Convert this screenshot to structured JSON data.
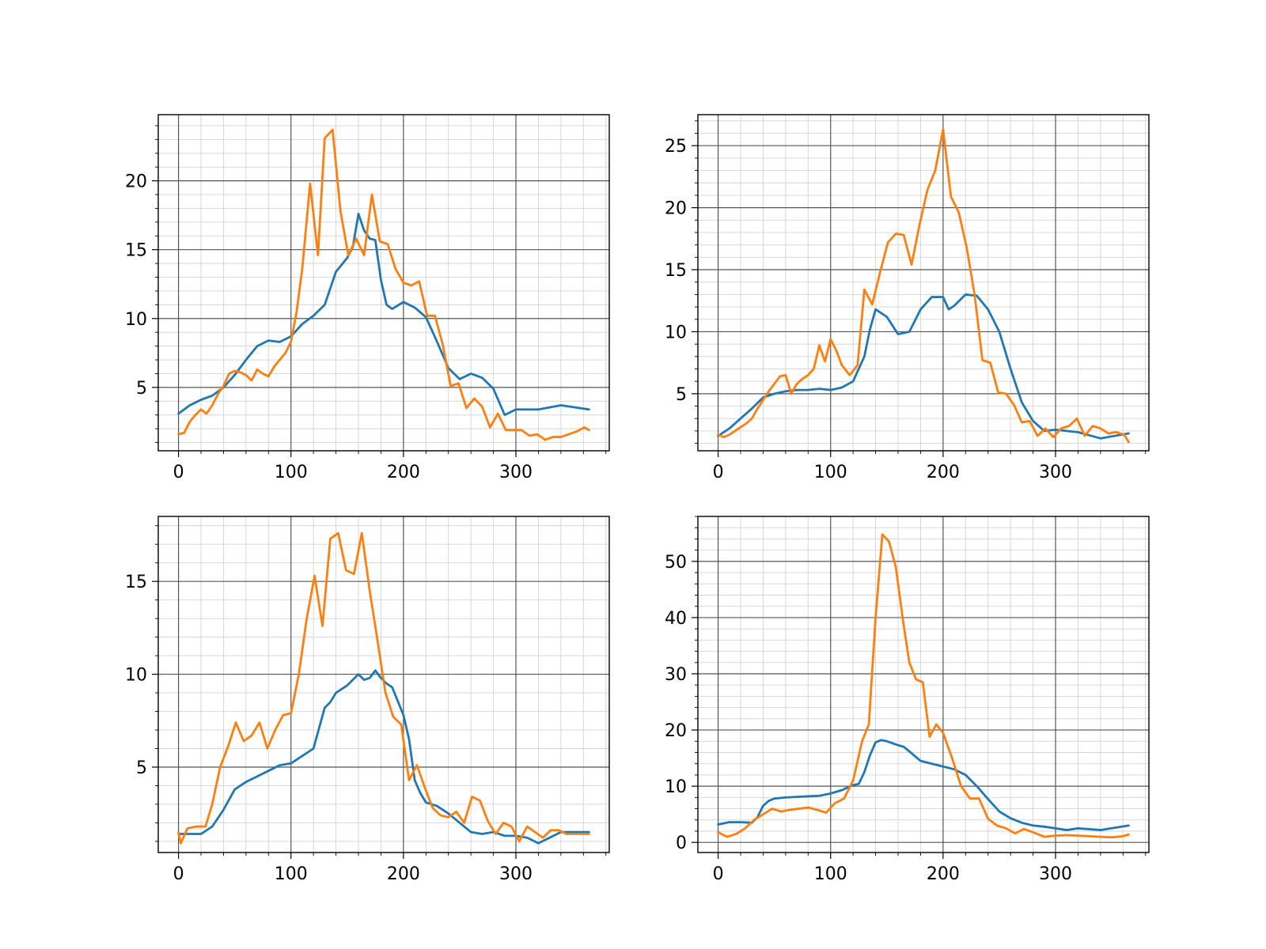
{
  "chart_data": [
    {
      "type": "line",
      "title": "",
      "xlabel": "",
      "ylabel": "",
      "xlim": [
        -18,
        383
      ],
      "ylim": [
        0.4,
        24.8
      ],
      "x_ticks": [
        0,
        100,
        200,
        300
      ],
      "x_ticks_minor": 20,
      "y_ticks": [
        5,
        10,
        15,
        20
      ],
      "y_ticks_minor": 1,
      "grid": true,
      "series": [
        {
          "color": "#1f77b4",
          "x": [
            0,
            10,
            20,
            30,
            40,
            50,
            60,
            70,
            80,
            90,
            100,
            110,
            120,
            130,
            140,
            150,
            155,
            160,
            165,
            170,
            175,
            180,
            185,
            190,
            200,
            210,
            220,
            230,
            240,
            250,
            260,
            270,
            280,
            290,
            300,
            320,
            340,
            365
          ],
          "y": [
            3.1,
            3.7,
            4.1,
            4.4,
            5.0,
            5.9,
            7.0,
            8.0,
            8.4,
            8.3,
            8.7,
            9.6,
            10.2,
            11.0,
            13.4,
            14.4,
            15.2,
            17.6,
            16.4,
            15.8,
            15.7,
            12.8,
            11.0,
            10.7,
            11.2,
            10.8,
            10.1,
            8.3,
            6.4,
            5.6,
            6.0,
            5.7,
            4.9,
            3.0,
            3.4,
            3.4,
            3.7,
            3.4
          ]
        },
        {
          "color": "#ff7f0e",
          "x": [
            0,
            5,
            10,
            15,
            20,
            25,
            30,
            35,
            40,
            45,
            50,
            55,
            60,
            65,
            70,
            75,
            80,
            85,
            90,
            95,
            100,
            105,
            110,
            117,
            124,
            130,
            137,
            144,
            151,
            158,
            165,
            172,
            179,
            186,
            193,
            200,
            207,
            214,
            221,
            228,
            235,
            242,
            249,
            256,
            263,
            270,
            277,
            284,
            291,
            298,
            305,
            312,
            319,
            326,
            333,
            340,
            347,
            354,
            361,
            365
          ],
          "y": [
            1.6,
            1.7,
            2.5,
            3.0,
            3.4,
            3.1,
            3.7,
            4.5,
            5.1,
            6.0,
            6.2,
            6.1,
            5.9,
            5.5,
            6.3,
            6.0,
            5.8,
            6.5,
            7.0,
            7.5,
            8.3,
            10.5,
            13.6,
            19.8,
            14.6,
            23.1,
            23.7,
            17.8,
            14.6,
            15.8,
            14.6,
            19.0,
            15.6,
            15.4,
            13.6,
            12.6,
            12.4,
            12.7,
            10.2,
            10.2,
            8.1,
            5.1,
            5.3,
            3.5,
            4.2,
            3.6,
            2.1,
            3.1,
            1.9,
            1.9,
            1.9,
            1.5,
            1.6,
            1.2,
            1.4,
            1.4,
            1.6,
            1.8,
            2.1,
            1.9
          ]
        }
      ]
    },
    {
      "type": "line",
      "title": "",
      "xlabel": "",
      "ylabel": "",
      "xlim": [
        -18,
        383
      ],
      "ylim": [
        0.4,
        27.5
      ],
      "x_ticks": [
        0,
        100,
        200,
        300
      ],
      "x_ticks_minor": 20,
      "y_ticks": [
        5,
        10,
        15,
        20,
        25
      ],
      "y_ticks_minor": 1,
      "grid": true,
      "series": [
        {
          "color": "#1f77b4",
          "x": [
            0,
            10,
            20,
            30,
            40,
            50,
            60,
            70,
            80,
            90,
            100,
            110,
            120,
            130,
            135,
            140,
            145,
            150,
            160,
            170,
            180,
            190,
            200,
            205,
            210,
            220,
            230,
            240,
            250,
            260,
            270,
            280,
            290,
            300,
            320,
            340,
            365
          ],
          "y": [
            1.6,
            2.2,
            3.0,
            3.8,
            4.7,
            5.0,
            5.2,
            5.3,
            5.3,
            5.4,
            5.3,
            5.5,
            6.0,
            8.0,
            10.2,
            11.8,
            11.5,
            11.2,
            9.8,
            10.0,
            11.8,
            12.8,
            12.8,
            11.8,
            12.1,
            13.0,
            12.9,
            11.8,
            10.0,
            7.0,
            4.3,
            2.8,
            2.0,
            2.1,
            1.9,
            1.4,
            1.8
          ]
        },
        {
          "color": "#ff7f0e",
          "x": [
            0,
            5,
            10,
            15,
            20,
            25,
            30,
            35,
            40,
            45,
            50,
            55,
            60,
            65,
            70,
            75,
            80,
            85,
            90,
            95,
            100,
            105,
            110,
            117,
            124,
            130,
            137,
            144,
            151,
            158,
            165,
            172,
            179,
            186,
            193,
            200,
            207,
            214,
            221,
            228,
            235,
            242,
            249,
            256,
            263,
            270,
            277,
            284,
            291,
            298,
            305,
            312,
            319,
            326,
            333,
            340,
            347,
            354,
            361,
            365
          ],
          "y": [
            1.7,
            1.5,
            1.7,
            2.0,
            2.3,
            2.6,
            3.0,
            3.8,
            4.5,
            5.2,
            5.8,
            6.4,
            6.5,
            5.0,
            5.8,
            6.2,
            6.5,
            7.0,
            8.9,
            7.6,
            9.4,
            8.5,
            7.3,
            6.5,
            7.3,
            13.4,
            12.2,
            14.8,
            17.2,
            17.9,
            17.8,
            15.4,
            18.6,
            21.4,
            23.0,
            26.3,
            20.9,
            19.6,
            16.8,
            13.0,
            7.7,
            7.5,
            5.1,
            5.0,
            4.1,
            2.7,
            2.8,
            1.6,
            2.2,
            1.5,
            2.2,
            2.4,
            3.0,
            1.6,
            2.4,
            2.2,
            1.8,
            1.9,
            1.7,
            1.1
          ]
        }
      ]
    },
    {
      "type": "line",
      "title": "",
      "xlabel": "",
      "ylabel": "",
      "xlim": [
        -18,
        383
      ],
      "ylim": [
        0.4,
        18.5
      ],
      "x_ticks": [
        0,
        100,
        200,
        300
      ],
      "x_ticks_minor": 20,
      "y_ticks": [
        5,
        10,
        15
      ],
      "y_ticks_minor": 1,
      "grid": true,
      "series": [
        {
          "color": "#1f77b4",
          "x": [
            0,
            10,
            20,
            30,
            40,
            50,
            60,
            70,
            80,
            90,
            100,
            110,
            120,
            130,
            135,
            140,
            150,
            160,
            165,
            170,
            175,
            180,
            185,
            190,
            200,
            205,
            210,
            215,
            220,
            230,
            240,
            250,
            260,
            270,
            280,
            290,
            300,
            310,
            320,
            330,
            340,
            350,
            365
          ],
          "y": [
            1.4,
            1.4,
            1.4,
            1.8,
            2.7,
            3.8,
            4.2,
            4.5,
            4.8,
            5.1,
            5.2,
            5.6,
            6.0,
            8.2,
            8.5,
            9.0,
            9.4,
            10.0,
            9.7,
            9.8,
            10.2,
            9.8,
            9.5,
            9.3,
            7.8,
            6.5,
            4.3,
            3.6,
            3.1,
            2.9,
            2.5,
            2.0,
            1.5,
            1.4,
            1.5,
            1.3,
            1.3,
            1.2,
            0.9,
            1.2,
            1.5,
            1.5,
            1.5
          ]
        },
        {
          "color": "#ff7f0e",
          "x": [
            0,
            2,
            8,
            16,
            24,
            30,
            37,
            44,
            51,
            58,
            65,
            72,
            79,
            86,
            93,
            100,
            107,
            114,
            121,
            128,
            135,
            142,
            149,
            156,
            163,
            170,
            177,
            184,
            191,
            198,
            205,
            212,
            219,
            226,
            233,
            240,
            247,
            254,
            261,
            268,
            275,
            282,
            289,
            296,
            303,
            310,
            317,
            324,
            331,
            338,
            345,
            352,
            359,
            365
          ],
          "y": [
            1.5,
            0.9,
            1.7,
            1.8,
            1.8,
            3.0,
            5.0,
            6.1,
            7.4,
            6.4,
            6.7,
            7.4,
            6.0,
            7.0,
            7.8,
            7.9,
            10.0,
            13.0,
            15.3,
            12.6,
            17.3,
            17.6,
            15.6,
            15.4,
            17.6,
            14.5,
            11.8,
            9.0,
            7.7,
            7.3,
            4.3,
            5.1,
            3.9,
            2.8,
            2.4,
            2.3,
            2.6,
            2.0,
            3.4,
            3.2,
            2.1,
            1.4,
            2.0,
            1.8,
            1.0,
            1.8,
            1.5,
            1.2,
            1.6,
            1.6,
            1.4,
            1.4,
            1.4,
            1.4
          ]
        }
      ]
    },
    {
      "type": "line",
      "title": "",
      "xlabel": "",
      "ylabel": "",
      "xlim": [
        -18,
        383
      ],
      "ylim": [
        -1.8,
        58
      ],
      "x_ticks": [
        0,
        100,
        200,
        300
      ],
      "x_ticks_minor": 20,
      "y_ticks": [
        0,
        10,
        20,
        30,
        40,
        50
      ],
      "y_ticks_minor": 2,
      "grid": true,
      "series": [
        {
          "color": "#1f77b4",
          "x": [
            0,
            10,
            20,
            30,
            35,
            40,
            45,
            50,
            60,
            70,
            80,
            90,
            100,
            110,
            120,
            125,
            130,
            135,
            140,
            145,
            150,
            160,
            165,
            170,
            180,
            190,
            200,
            210,
            220,
            230,
            240,
            250,
            260,
            270,
            280,
            290,
            300,
            310,
            320,
            340,
            365
          ],
          "y": [
            3.2,
            3.6,
            3.6,
            3.5,
            4.5,
            6.5,
            7.4,
            7.8,
            8.0,
            8.1,
            8.2,
            8.3,
            8.7,
            9.3,
            10.2,
            10.4,
            12.5,
            15.5,
            17.8,
            18.2,
            18.0,
            17.3,
            17.0,
            16.2,
            14.5,
            14.0,
            13.5,
            13.0,
            12.0,
            10.0,
            7.7,
            5.5,
            4.3,
            3.5,
            3.0,
            2.8,
            2.5,
            2.2,
            2.5,
            2.2,
            3.0
          ]
        },
        {
          "color": "#ff7f0e",
          "x": [
            0,
            8,
            16,
            24,
            32,
            40,
            48,
            56,
            64,
            72,
            80,
            88,
            96,
            104,
            112,
            120,
            128,
            134,
            140,
            146,
            152,
            158,
            164,
            170,
            176,
            182,
            188,
            194,
            200,
            208,
            216,
            224,
            232,
            240,
            248,
            256,
            264,
            272,
            280,
            290,
            300,
            310,
            320,
            330,
            340,
            350,
            360,
            365
          ],
          "y": [
            1.8,
            1.0,
            1.5,
            2.5,
            4.0,
            5.0,
            6.0,
            5.5,
            5.8,
            6.0,
            6.2,
            5.8,
            5.3,
            7.0,
            7.8,
            11.0,
            18.0,
            21.0,
            40.0,
            54.8,
            53.5,
            49.0,
            40.0,
            32.0,
            29.0,
            28.5,
            18.8,
            21.0,
            19.5,
            15.0,
            10.0,
            7.8,
            7.8,
            4.2,
            3.0,
            2.5,
            1.6,
            2.4,
            1.8,
            1.0,
            1.2,
            1.3,
            1.2,
            1.1,
            1.0,
            0.9,
            1.1,
            1.4
          ]
        }
      ]
    }
  ]
}
